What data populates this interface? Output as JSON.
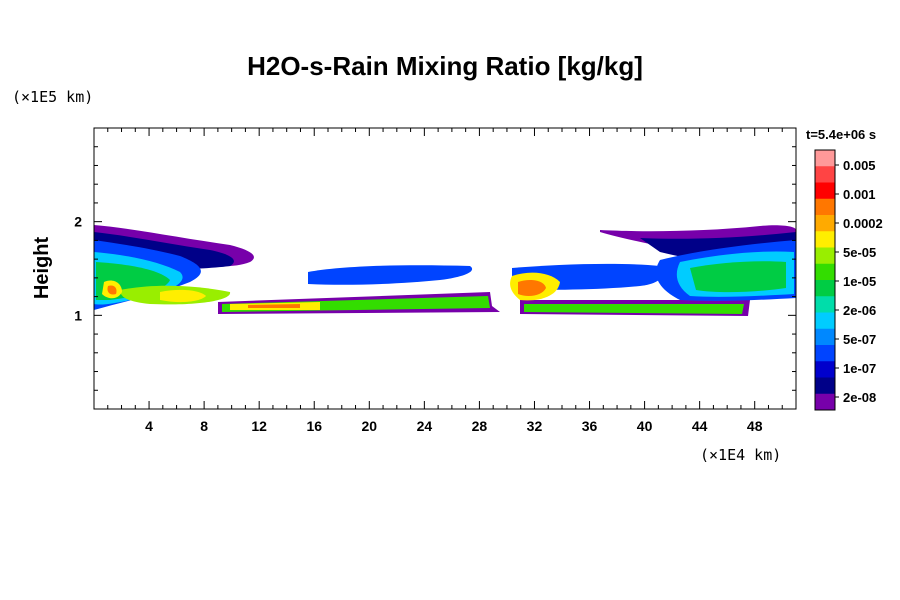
{
  "chart_data": {
    "type": "heatmap",
    "title": "H2O-s-Rain Mixing Ratio [kg/kg]",
    "ylabel": "Height",
    "x_unit": "(×1E4 km)",
    "y_unit": "(×1E5 km)",
    "time_label": "t=5.4e+06 s",
    "x_ticks": [
      "4",
      "8",
      "12",
      "16",
      "20",
      "24",
      "28",
      "32",
      "36",
      "40",
      "44",
      "48"
    ],
    "y_ticks": [
      "1",
      "2"
    ],
    "xlim": [
      0,
      51
    ],
    "ylim": [
      0,
      3
    ],
    "colorbar": {
      "levels": [
        "0.005",
        "0.001",
        "0.0002",
        "5e-05",
        "1e-05",
        "2e-06",
        "5e-07",
        "1e-07",
        "2e-08"
      ],
      "colors": [
        "#ff9999",
        "#ff4444",
        "#ff0000",
        "#ff7700",
        "#ffaa00",
        "#ffee00",
        "#99ee00",
        "#33dd00",
        "#00cc44",
        "#00ddaa",
        "#00ccff",
        "#0088ff",
        "#0044ff",
        "#0000cc",
        "#000088",
        "#7700aa"
      ]
    }
  }
}
